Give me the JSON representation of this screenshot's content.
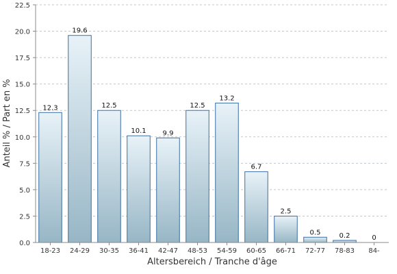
{
  "chart_data": {
    "type": "bar",
    "title": "",
    "xlabel": "Altersbereich / Tranche d'âge",
    "ylabel": "Anteil % / Part en %",
    "categories": [
      "18-23",
      "24-29",
      "30-35",
      "36-41",
      "42-47",
      "48-53",
      "54-59",
      "60-65",
      "66-71",
      "72-77",
      "78-83",
      "84-"
    ],
    "values": [
      12.3,
      19.6,
      12.5,
      10.1,
      9.9,
      12.5,
      13.2,
      6.7,
      2.5,
      0.5,
      0.2,
      0
    ],
    "value_labels": [
      "12.3",
      "19.6",
      "12.5",
      "10.1",
      "9.9",
      "12.5",
      "13.2",
      "6.7",
      "2.5",
      "0.5",
      "0.2",
      "0"
    ],
    "ylim": [
      0,
      22.5
    ],
    "yticks": [
      "0.0",
      "2.5",
      "5.0",
      "7.5",
      "10.0",
      "12.5",
      "15.0",
      "17.5",
      "20.0",
      "22.5"
    ],
    "grid": "horizontal dashed",
    "legend": "none",
    "colors": {
      "bar_top": "#e8f2f8",
      "bar_bottom": "#97b6c5",
      "bar_stroke": "#3a6ea5",
      "grid": "#c0c7cc",
      "axis": "#888888",
      "text": "#333333"
    }
  }
}
